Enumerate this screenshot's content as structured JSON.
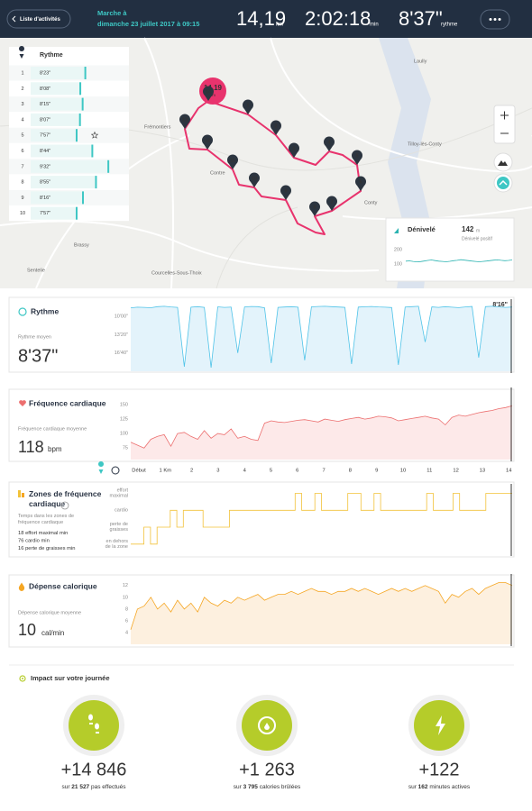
{
  "header": {
    "back": "Liste d'activités",
    "activity": "Marche à",
    "date": "dimanche 23 juillet 2017 à 09:15",
    "distance": "14,19",
    "distance_unit": "km",
    "duration": "2:02:18",
    "duration_unit": "min",
    "pace": "8'37\"",
    "pace_unit": "rythme"
  },
  "map": {
    "places": [
      "Laully",
      "Tilloy-lès-Conty",
      "Frémontiers",
      "Conty",
      "Contre",
      "Brassy",
      "Sentelie",
      "Courcelles-Sous-Thoix"
    ],
    "markers": [
      1,
      2,
      3,
      4,
      5,
      6,
      7,
      8,
      9,
      10,
      11,
      12,
      13,
      14
    ],
    "bubble_value": "14,19",
    "bubble_unit": "km"
  },
  "pace_table": {
    "title": "Rythme",
    "rows": [
      {
        "km": 1,
        "pace": {
          "value": 503,
          "label": "8'23\""
        }
      },
      {
        "km": 2,
        "pace": {
          "value": 488,
          "label": "8'08\""
        }
      },
      {
        "km": 3,
        "pace": {
          "value": 495,
          "label": "8'15\""
        }
      },
      {
        "km": 4,
        "pace": {
          "value": 487,
          "label": "8'07\""
        }
      },
      {
        "km": 5,
        "pace": {
          "value": 477,
          "label": "7'57\""
        }
      },
      {
        "km": 6,
        "pace": {
          "value": 524,
          "label": "8'44\""
        }
      },
      {
        "km": 7,
        "pace": {
          "value": 572,
          "label": "9'32\""
        }
      },
      {
        "km": 8,
        "pace": {
          "value": 535,
          "label": "8'55\""
        }
      },
      {
        "km": 9,
        "pace": {
          "value": 496,
          "label": "8'16\""
        }
      },
      {
        "km": 10,
        "pace": {
          "value": 477,
          "label": "7'57\""
        }
      }
    ]
  },
  "chart_data": [
    {
      "type": "line",
      "title": "Rythme",
      "avg_label": "Rythme moyen",
      "avg_value": "8'37\"",
      "cursor_label": "8'16\"",
      "color": "#4fc3e8",
      "ylim": [
        1200,
        440
      ],
      "yticks": [
        {
          "value": 600,
          "label": "10'00\""
        },
        {
          "value": 800,
          "label": "13'20\""
        },
        {
          "value": 1000,
          "label": "16'40\""
        }
      ],
      "values": [
        505,
        498,
        500,
        504,
        492,
        488,
        495,
        500,
        1150,
        498,
        492,
        500,
        1160,
        494,
        500,
        497,
        1000,
        495,
        490,
        492,
        505,
        1110,
        500,
        496,
        492,
        498,
        1080,
        494,
        490,
        488,
        492,
        496,
        500,
        1120,
        497,
        493,
        490,
        495,
        498,
        502,
        1130,
        496,
        492,
        488,
        880,
        495,
        500,
        492,
        498,
        503,
        495,
        490,
        1050,
        492,
        488,
        495,
        500,
        496
      ]
    },
    {
      "type": "line",
      "title": "Fréquence cardiaque",
      "avg_label": "Fréquence cardiaque moyenne",
      "avg_value": "118",
      "avg_unit": "bpm",
      "color": "#ec6f6f",
      "ylim": [
        55,
        175
      ],
      "yticks": [
        75,
        100,
        125,
        150
      ],
      "values": [
        85,
        80,
        75,
        90,
        95,
        98,
        78,
        100,
        102,
        95,
        90,
        105,
        92,
        100,
        98,
        108,
        92,
        95,
        90,
        88,
        118,
        122,
        120,
        119,
        121,
        123,
        124,
        122,
        120,
        125,
        123,
        121,
        124,
        126,
        128,
        125,
        127,
        130,
        129,
        127,
        122,
        124,
        126,
        128,
        130,
        127,
        125,
        115,
        128,
        132,
        130,
        133,
        136,
        138,
        140,
        143,
        145,
        148
      ]
    },
    {
      "type": "step",
      "title": "Zones de fréquence cardiaque",
      "subtitle": "Temps dans les zones de fréquence cardiaque",
      "stats": [
        {
          "value": 18,
          "label": "effort maximal",
          "unit": "min"
        },
        {
          "value": 76,
          "label": "cardio",
          "unit": "min"
        },
        {
          "value": 16,
          "label": "perte de graisses",
          "unit": "min"
        }
      ],
      "color": "#f2c23a",
      "ylim": [
        -0.6,
        3.4
      ],
      "yticks": [
        {
          "value": 3,
          "label": "effort maximal"
        },
        {
          "value": 2,
          "label": "cardio"
        },
        {
          "value": 1,
          "label": "perte de graisses"
        },
        {
          "value": 0,
          "label": "en dehors de la zone"
        }
      ],
      "values": [
        0,
        0,
        1,
        0,
        1,
        1,
        2,
        1,
        2,
        2,
        2,
        1,
        1,
        1,
        1,
        2,
        2,
        2,
        2,
        2,
        2,
        2,
        2,
        2,
        2,
        3,
        2,
        2,
        3,
        2,
        2,
        2,
        2,
        3,
        3,
        2,
        2,
        3,
        2,
        2,
        2,
        2,
        2,
        2,
        2,
        3,
        2,
        2,
        2,
        3,
        2,
        2,
        2,
        2,
        3,
        3,
        3,
        3
      ]
    },
    {
      "type": "line",
      "title": "Dépense calorique",
      "avg_label": "Dépense calorique moyenne",
      "avg_value": "10",
      "avg_unit": "cal/min",
      "color": "#f5a623",
      "ylim": [
        2,
        13.5
      ],
      "yticks": [
        4,
        6,
        8,
        10,
        12
      ],
      "values": [
        4.5,
        8,
        8.5,
        10,
        8,
        9,
        7.5,
        9.5,
        8,
        9,
        7.5,
        10,
        9,
        8.5,
        9.5,
        9,
        10,
        9.5,
        10,
        10.5,
        9.5,
        10,
        10.5,
        10.5,
        11,
        10.5,
        11,
        11.5,
        11,
        11,
        10.5,
        11,
        11,
        11.5,
        11,
        11.5,
        11,
        10.5,
        11,
        11.5,
        11,
        11.5,
        11,
        11.5,
        12,
        11.5,
        11,
        9,
        10.5,
        10,
        11,
        11.5,
        10.5,
        11.5,
        12,
        12.5,
        12.5,
        12
      ]
    },
    {
      "type": "line",
      "title": "Dénivelé",
      "total": "142",
      "total_unit": "m",
      "subtitle": "Dénivelé positif",
      "color": "#2bb3b1",
      "ylim": [
        25,
        244
      ],
      "yticks": [
        200,
        100
      ],
      "values": [
        120,
        122,
        118,
        115,
        117,
        121,
        125,
        128,
        124,
        120,
        118,
        116,
        119,
        123,
        126,
        130,
        127,
        124,
        121,
        118,
        116,
        118,
        121,
        124,
        127,
        129,
        126,
        123,
        125,
        128
      ]
    }
  ],
  "x_axis": {
    "labels": [
      "Début",
      "1 Km",
      2,
      3,
      4,
      5,
      6,
      7,
      8,
      9,
      10,
      11,
      12,
      13,
      14
    ]
  },
  "impact": {
    "title": "Impact sur votre journée",
    "items": [
      {
        "value": "+14 846",
        "prefix": "sur",
        "total": "21 527",
        "suffix": "pas effectués"
      },
      {
        "value": "+1 263",
        "prefix": "sur",
        "total": "3 795",
        "suffix": "calories brûlées"
      },
      {
        "value": "+122",
        "prefix": "sur",
        "total": "162",
        "suffix": "minutes actives"
      }
    ]
  }
}
